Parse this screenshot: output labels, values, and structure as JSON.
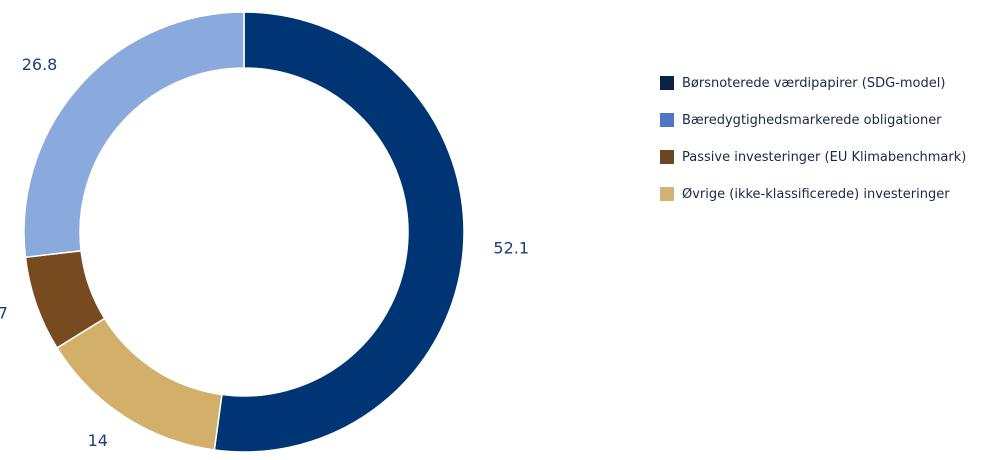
{
  "chart_data": {
    "type": "pie",
    "variant": "donut",
    "title": "",
    "series": [
      {
        "name": "",
        "values": [
          52.1,
          14,
          7,
          26.8
        ]
      }
    ],
    "slices": [
      {
        "value": 52.1,
        "label": "52.1",
        "color": "#003575"
      },
      {
        "value": 14,
        "label": "14",
        "color": "#d2b06a"
      },
      {
        "value": 7,
        "label": "7",
        "color": "#774b1f"
      },
      {
        "value": 26.8,
        "label": "26.8",
        "color": "#8aa9dd"
      }
    ],
    "start_angle": "12 o'clock",
    "direction": "clockwise",
    "legend": {
      "placement": "right",
      "items": [
        {
          "label": "Børsnoterede værdipapirer (SDG-model)",
          "color": "#0a2248"
        },
        {
          "label": "Bæredygtighedsmarkerede obligationer",
          "color": "#4f76c4"
        },
        {
          "label": "Passive investeringer (EU Klimabenchmark)",
          "color": "#6b4620"
        },
        {
          "label": "Øvrige (ikke-klassificerede) investeringer",
          "color": "#d4b272"
        }
      ]
    }
  }
}
